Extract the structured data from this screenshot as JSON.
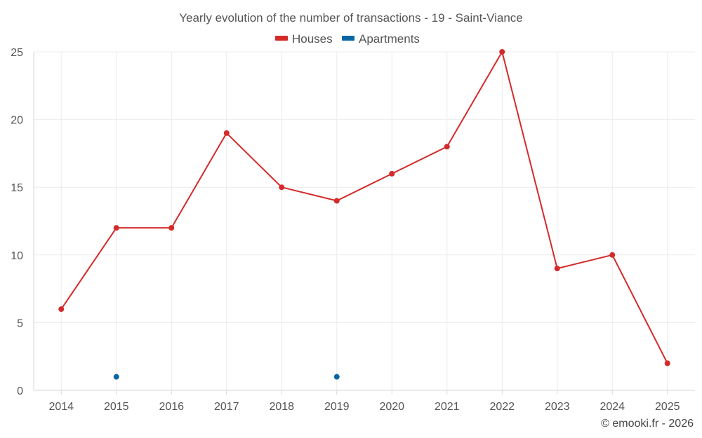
{
  "chart_data": {
    "type": "line",
    "title": "Yearly evolution of the number of transactions - 19 - Saint-Viance",
    "categories": [
      "2014",
      "2015",
      "2016",
      "2017",
      "2018",
      "2019",
      "2020",
      "2021",
      "2022",
      "2023",
      "2024",
      "2025"
    ],
    "series": [
      {
        "name": "Houses",
        "color": "#d42a2a",
        "values": [
          6,
          12,
          12,
          19,
          15,
          14,
          16,
          18,
          25,
          9,
          10,
          2
        ],
        "line": true
      },
      {
        "name": "Apartments",
        "color": "#0a67a3",
        "values": [
          null,
          1,
          null,
          null,
          null,
          1,
          null,
          null,
          null,
          null,
          null,
          null
        ],
        "line": true
      }
    ],
    "ylim": [
      0,
      25
    ],
    "yticks": [
      0,
      5,
      10,
      15,
      20,
      25
    ],
    "xlabel": "",
    "ylabel": "",
    "grid": true,
    "legend_position": "top-center"
  },
  "credit": "© emooki.fr - 2026"
}
